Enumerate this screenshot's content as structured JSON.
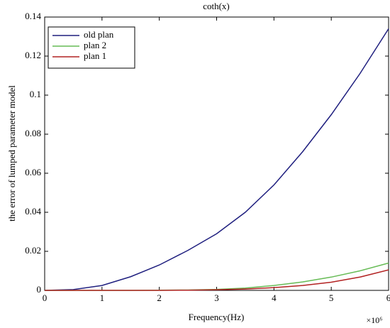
{
  "chart_data": {
    "type": "line",
    "title": "coth(x)",
    "x_label": "Frequency(Hz)",
    "y_label": "the error of lumped parameter model",
    "x_multiplier": "×10⁶",
    "x": [
      0,
      0.5,
      1,
      1.5,
      2,
      2.5,
      3,
      3.5,
      4,
      4.5,
      5,
      5.5,
      6
    ],
    "series": [
      {
        "name": "old plan",
        "color": "#1f1f7f",
        "values": [
          0,
          0.0004,
          0.0025,
          0.007,
          0.013,
          0.0205,
          0.029,
          0.04,
          0.054,
          0.071,
          0.09,
          0.111,
          0.134
        ]
      },
      {
        "name": "plan 2",
        "color": "#66bb55",
        "values": [
          0,
          0,
          0,
          0,
          0.0001,
          0.0002,
          0.0005,
          0.0012,
          0.0025,
          0.0043,
          0.0068,
          0.01,
          0.014
        ]
      },
      {
        "name": "plan 1",
        "color": "#b22222",
        "values": [
          0,
          0,
          0,
          0,
          0,
          0.0001,
          0.0003,
          0.0007,
          0.0014,
          0.0025,
          0.0042,
          0.0068,
          0.0105
        ]
      }
    ],
    "xlim": [
      0,
      6
    ],
    "xticks": [
      0,
      1,
      2,
      3,
      4,
      5,
      6
    ],
    "ylim": [
      0,
      0.14
    ],
    "yticks": [
      0,
      0.02,
      0.04,
      0.06,
      0.08,
      0.1,
      0.12,
      0.14
    ],
    "legend": "upper left",
    "grid": false
  }
}
